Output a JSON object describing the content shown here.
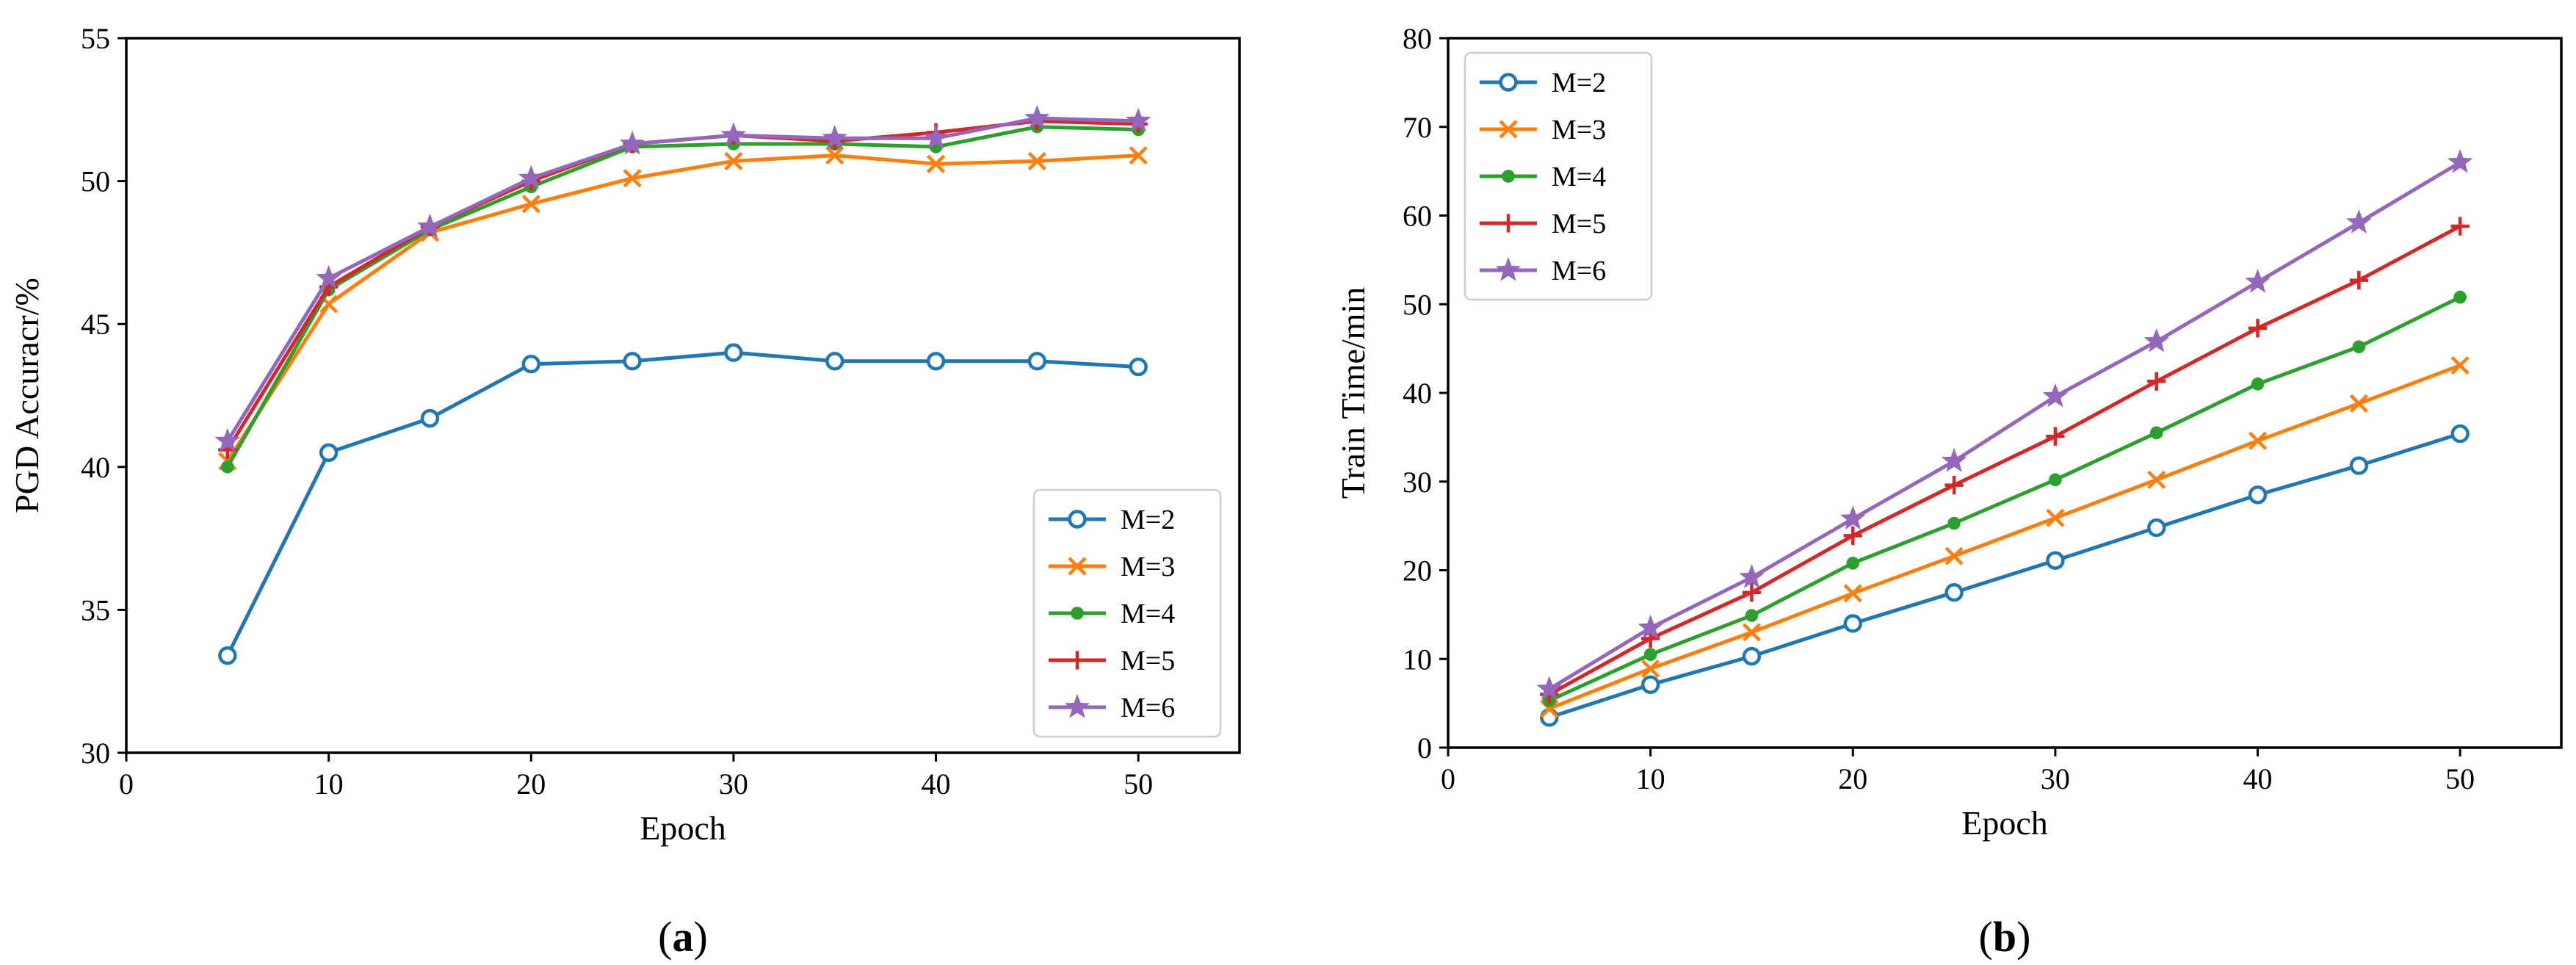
{
  "chart_data": [
    {
      "type": "line",
      "caption_letter": "a",
      "xlabel": "Epoch",
      "ylabel": "PGD Accuracr/%",
      "xlim": [
        0,
        55
      ],
      "ylim": [
        30,
        55
      ],
      "xticks": [
        0,
        10,
        20,
        30,
        40,
        50
      ],
      "yticks": [
        30,
        35,
        40,
        45,
        50,
        55
      ],
      "x": [
        5,
        10,
        15,
        20,
        25,
        30,
        35,
        40,
        45,
        50
      ],
      "legend_position": "lower-right",
      "series": [
        {
          "name": "M=2",
          "marker": "circle-open",
          "color": "#1f77b4",
          "values": [
            33.4,
            40.5,
            41.7,
            43.6,
            43.7,
            44.0,
            43.7,
            43.7,
            43.7,
            43.5
          ]
        },
        {
          "name": "M=3",
          "marker": "x",
          "color": "#ff7f0e",
          "values": [
            40.2,
            45.7,
            48.2,
            49.2,
            50.1,
            50.7,
            50.9,
            50.6,
            50.7,
            50.9
          ]
        },
        {
          "name": "M=4",
          "marker": "dot",
          "color": "#2ca02c",
          "values": [
            40.0,
            46.2,
            48.3,
            49.8,
            51.2,
            51.3,
            51.3,
            51.2,
            51.9,
            51.8
          ]
        },
        {
          "name": "M=5",
          "marker": "plus",
          "color": "#d62728",
          "values": [
            40.6,
            46.3,
            48.4,
            50.0,
            51.3,
            51.6,
            51.4,
            51.7,
            52.1,
            52.0
          ]
        },
        {
          "name": "M=6",
          "marker": "star",
          "color": "#9467bd",
          "values": [
            40.9,
            46.6,
            48.4,
            50.1,
            51.3,
            51.6,
            51.5,
            51.5,
            52.2,
            52.1
          ]
        }
      ]
    },
    {
      "type": "line",
      "caption_letter": "b",
      "xlabel": "Epoch",
      "ylabel": "Train Time/min",
      "xlim": [
        0,
        55
      ],
      "ylim": [
        0,
        80
      ],
      "xticks": [
        0,
        10,
        20,
        30,
        40,
        50
      ],
      "yticks": [
        0,
        10,
        20,
        30,
        40,
        50,
        60,
        70,
        80
      ],
      "x": [
        5,
        10,
        15,
        20,
        25,
        30,
        35,
        40,
        45,
        50
      ],
      "legend_position": "upper-left",
      "series": [
        {
          "name": "M=2",
          "marker": "circle-open",
          "color": "#1f77b4",
          "values": [
            3.4,
            7.1,
            10.3,
            14.0,
            17.5,
            21.1,
            24.8,
            28.5,
            31.8,
            35.4
          ]
        },
        {
          "name": "M=3",
          "marker": "x",
          "color": "#ff7f0e",
          "values": [
            4.4,
            8.9,
            13.0,
            17.4,
            21.6,
            25.9,
            30.2,
            34.6,
            38.8,
            43.1
          ]
        },
        {
          "name": "M=4",
          "marker": "dot",
          "color": "#2ca02c",
          "values": [
            5.3,
            10.5,
            14.9,
            20.8,
            25.3,
            30.2,
            35.5,
            41.0,
            45.2,
            50.8
          ]
        },
        {
          "name": "M=5",
          "marker": "plus",
          "color": "#d62728",
          "values": [
            6.0,
            12.3,
            17.5,
            23.9,
            29.6,
            35.1,
            41.3,
            47.3,
            52.7,
            58.8
          ]
        },
        {
          "name": "M=6",
          "marker": "star",
          "color": "#9467bd",
          "values": [
            6.6,
            13.5,
            19.2,
            25.8,
            32.3,
            39.6,
            45.8,
            52.5,
            59.2,
            66.0
          ]
        }
      ]
    }
  ]
}
